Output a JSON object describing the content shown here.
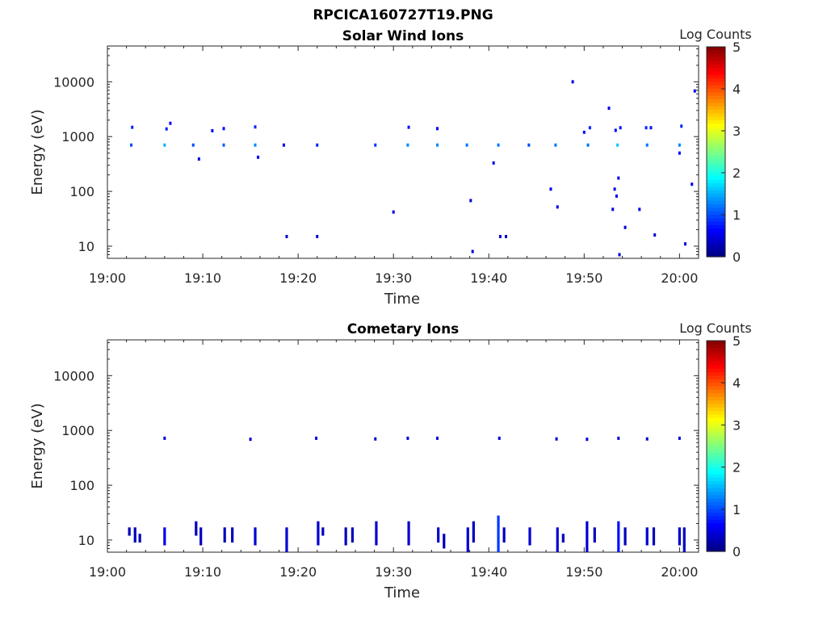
{
  "figure_title": "RPCICA160727T19.PNG",
  "colorbar": {
    "label": "Log Counts",
    "ticks": [
      "0",
      "1",
      "2",
      "3",
      "4",
      "5"
    ],
    "range": [
      0,
      5
    ],
    "colormap": "jet"
  },
  "chart_data": [
    {
      "type": "heatmap",
      "title": "Solar Wind Ions",
      "xlabel": "Time",
      "ylabel": "Energy (eV)",
      "y_scale": "log",
      "xlim": [
        "19:00",
        "20:02"
      ],
      "ylim": [
        6,
        45000
      ],
      "x_ticks": [
        "19:00",
        "19:10",
        "19:20",
        "19:30",
        "19:40",
        "19:50",
        "20:00"
      ],
      "y_ticks": [
        "10",
        "100",
        "1000",
        "10000"
      ],
      "y_tick_values": [
        10,
        100,
        1000,
        10000
      ],
      "cells": [
        {
          "t": "19:02.5",
          "e": 700,
          "v": 1.0
        },
        {
          "t": "19:02.6",
          "e": 1480,
          "v": 0.8
        },
        {
          "t": "19:06.0",
          "e": 700,
          "v": 1.5
        },
        {
          "t": "19:06.2",
          "e": 1380,
          "v": 0.8
        },
        {
          "t": "19:06.6",
          "e": 1750,
          "v": 0.6
        },
        {
          "t": "19:09.0",
          "e": 700,
          "v": 1.0
        },
        {
          "t": "19:09.6",
          "e": 390,
          "v": 0.5
        },
        {
          "t": "19:11.0",
          "e": 1280,
          "v": 0.6
        },
        {
          "t": "19:12.2",
          "e": 700,
          "v": 1.1
        },
        {
          "t": "19:12.2",
          "e": 1400,
          "v": 0.7
        },
        {
          "t": "19:15.5",
          "e": 700,
          "v": 1.3
        },
        {
          "t": "19:15.5",
          "e": 1500,
          "v": 0.8
        },
        {
          "t": "19:15.8",
          "e": 420,
          "v": 0.6
        },
        {
          "t": "19:18.5",
          "e": 700,
          "v": 0.6
        },
        {
          "t": "19:18.8",
          "e": 15,
          "v": 0.4
        },
        {
          "t": "19:22.0",
          "e": 700,
          "v": 0.8
        },
        {
          "t": "19:22.0",
          "e": 15,
          "v": 0.4
        },
        {
          "t": "19:28.1",
          "e": 700,
          "v": 0.9
        },
        {
          "t": "19:30.0",
          "e": 42,
          "v": 0.5
        },
        {
          "t": "19:31.5",
          "e": 700,
          "v": 1.3
        },
        {
          "t": "19:31.6",
          "e": 1480,
          "v": 0.7
        },
        {
          "t": "19:34.6",
          "e": 700,
          "v": 1.3
        },
        {
          "t": "19:34.6",
          "e": 1400,
          "v": 0.6
        },
        {
          "t": "19:37.7",
          "e": 700,
          "v": 1.2
        },
        {
          "t": "19:38.1",
          "e": 68,
          "v": 0.4
        },
        {
          "t": "19:38.3",
          "e": 8,
          "v": 0.4
        },
        {
          "t": "19:40.5",
          "e": 330,
          "v": 0.5
        },
        {
          "t": "19:41.0",
          "e": 700,
          "v": 1.2
        },
        {
          "t": "19:41.2",
          "e": 15,
          "v": 0.4
        },
        {
          "t": "19:41.8",
          "e": 15,
          "v": 0.4
        },
        {
          "t": "19:44.2",
          "e": 700,
          "v": 1.0
        },
        {
          "t": "19:46.5",
          "e": 110,
          "v": 0.5
        },
        {
          "t": "19:47.0",
          "e": 700,
          "v": 1.2
        },
        {
          "t": "19:47.2",
          "e": 52,
          "v": 0.5
        },
        {
          "t": "19:48.8",
          "e": 10000,
          "v": 0.5
        },
        {
          "t": "19:50.0",
          "e": 1200,
          "v": 0.7
        },
        {
          "t": "19:50.4",
          "e": 700,
          "v": 1.2
        },
        {
          "t": "19:50.6",
          "e": 1450,
          "v": 0.8
        },
        {
          "t": "19:52.6",
          "e": 3300,
          "v": 0.5
        },
        {
          "t": "19:53.0",
          "e": 47,
          "v": 0.5
        },
        {
          "t": "19:53.2",
          "e": 110,
          "v": 0.5
        },
        {
          "t": "19:53.3",
          "e": 1300,
          "v": 0.6
        },
        {
          "t": "19:53.4",
          "e": 82,
          "v": 0.5
        },
        {
          "t": "19:53.5",
          "e": 700,
          "v": 1.6
        },
        {
          "t": "19:53.6",
          "e": 175,
          "v": 0.5
        },
        {
          "t": "19:53.7",
          "e": 7,
          "v": 0.4
        },
        {
          "t": "19:53.8",
          "e": 1450,
          "v": 0.7
        },
        {
          "t": "19:54.3",
          "e": 22,
          "v": 0.4
        },
        {
          "t": "19:55.8",
          "e": 47,
          "v": 0.5
        },
        {
          "t": "19:56.6",
          "e": 700,
          "v": 1.2
        },
        {
          "t": "19:56.5",
          "e": 1450,
          "v": 0.8
        },
        {
          "t": "19:57.0",
          "e": 1450,
          "v": 0.7
        },
        {
          "t": "19:57.4",
          "e": 16,
          "v": 0.4
        },
        {
          "t": "20:00.0",
          "e": 700,
          "v": 1.3
        },
        {
          "t": "20:00.0",
          "e": 500,
          "v": 0.6
        },
        {
          "t": "20:00.2",
          "e": 1550,
          "v": 0.8
        },
        {
          "t": "20:00.6",
          "e": 11,
          "v": 0.4
        },
        {
          "t": "20:01.3",
          "e": 135,
          "v": 0.5
        },
        {
          "t": "20:01.6",
          "e": 6800,
          "v": 0.5
        }
      ]
    },
    {
      "type": "heatmap",
      "title": "Cometary Ions",
      "xlabel": "Time",
      "ylabel": "Energy (eV)",
      "y_scale": "log",
      "xlim": [
        "19:00",
        "20:02"
      ],
      "ylim": [
        6,
        45000
      ],
      "x_ticks": [
        "19:00",
        "19:10",
        "19:20",
        "19:30",
        "19:40",
        "19:50",
        "20:00"
      ],
      "y_ticks": [
        "10",
        "100",
        "1000",
        "10000"
      ],
      "y_tick_values": [
        10,
        100,
        1000,
        10000
      ],
      "cells": [
        {
          "t": "19:06.0",
          "e": 720,
          "v": 0.4
        },
        {
          "t": "19:15.0",
          "e": 690,
          "v": 0.4
        },
        {
          "t": "19:21.9",
          "e": 720,
          "v": 0.4
        },
        {
          "t": "19:28.1",
          "e": 700,
          "v": 0.4
        },
        {
          "t": "19:31.5",
          "e": 720,
          "v": 0.4
        },
        {
          "t": "19:34.6",
          "e": 720,
          "v": 0.4
        },
        {
          "t": "19:41.1",
          "e": 720,
          "v": 0.4
        },
        {
          "t": "19:47.1",
          "e": 700,
          "v": 0.4
        },
        {
          "t": "19:50.3",
          "e": 690,
          "v": 0.4
        },
        {
          "t": "19:53.6",
          "e": 720,
          "v": 0.4
        },
        {
          "t": "19:56.6",
          "e": 700,
          "v": 0.4
        },
        {
          "t": "20:00.0",
          "e": 720,
          "v": 0.4
        }
      ],
      "bursts": [
        {
          "t": "19:02.3",
          "e_min": 12,
          "e_max": 17,
          "v": 0.3
        },
        {
          "t": "19:02.9",
          "e_min": 9,
          "e_max": 17,
          "v": 0.3
        },
        {
          "t": "19:03.4",
          "e_min": 9,
          "e_max": 13,
          "v": 0.3
        },
        {
          "t": "19:06.0",
          "e_min": 8,
          "e_max": 17,
          "v": 0.5
        },
        {
          "t": "19:09.3",
          "e_min": 12,
          "e_max": 22,
          "v": 0.3
        },
        {
          "t": "19:09.8",
          "e_min": 8,
          "e_max": 17,
          "v": 0.3
        },
        {
          "t": "19:12.3",
          "e_min": 9,
          "e_max": 17,
          "v": 0.3
        },
        {
          "t": "19:13.1",
          "e_min": 9,
          "e_max": 17,
          "v": 0.3
        },
        {
          "t": "19:15.5",
          "e_min": 8,
          "e_max": 17,
          "v": 0.4
        },
        {
          "t": "19:18.8",
          "e_min": 6,
          "e_max": 17,
          "v": 0.4
        },
        {
          "t": "19:22.1",
          "e_min": 8,
          "e_max": 22,
          "v": 0.4
        },
        {
          "t": "19:22.6",
          "e_min": 12,
          "e_max": 17,
          "v": 0.3
        },
        {
          "t": "19:25.0",
          "e_min": 8,
          "e_max": 17,
          "v": 0.3
        },
        {
          "t": "19:25.7",
          "e_min": 9,
          "e_max": 17,
          "v": 0.3
        },
        {
          "t": "19:28.2",
          "e_min": 8,
          "e_max": 22,
          "v": 0.4
        },
        {
          "t": "19:31.6",
          "e_min": 8,
          "e_max": 22,
          "v": 0.4
        },
        {
          "t": "19:34.7",
          "e_min": 9,
          "e_max": 17,
          "v": 0.4
        },
        {
          "t": "19:35.3",
          "e_min": 7,
          "e_max": 13,
          "v": 0.3
        },
        {
          "t": "19:37.8",
          "e_min": 6,
          "e_max": 17,
          "v": 0.4
        },
        {
          "t": "19:38.4",
          "e_min": 9,
          "e_max": 22,
          "v": 0.3
        },
        {
          "t": "19:41.0",
          "e_min": 6,
          "e_max": 28,
          "v": 0.9
        },
        {
          "t": "19:41.6",
          "e_min": 9,
          "e_max": 17,
          "v": 0.3
        },
        {
          "t": "19:44.3",
          "e_min": 8,
          "e_max": 17,
          "v": 0.4
        },
        {
          "t": "19:47.2",
          "e_min": 6,
          "e_max": 17,
          "v": 0.4
        },
        {
          "t": "19:47.8",
          "e_min": 9,
          "e_max": 13,
          "v": 0.3
        },
        {
          "t": "19:50.3",
          "e_min": 6,
          "e_max": 22,
          "v": 0.4
        },
        {
          "t": "19:51.1",
          "e_min": 9,
          "e_max": 17,
          "v": 0.3
        },
        {
          "t": "19:53.6",
          "e_min": 6,
          "e_max": 22,
          "v": 0.7
        },
        {
          "t": "19:54.3",
          "e_min": 8,
          "e_max": 17,
          "v": 0.3
        },
        {
          "t": "19:56.6",
          "e_min": 8,
          "e_max": 17,
          "v": 0.4
        },
        {
          "t": "19:57.3",
          "e_min": 8,
          "e_max": 17,
          "v": 0.3
        },
        {
          "t": "20:00.0",
          "e_min": 8,
          "e_max": 17,
          "v": 0.4
        },
        {
          "t": "20:00.5",
          "e_min": 6,
          "e_max": 17,
          "v": 0.3
        }
      ]
    }
  ]
}
